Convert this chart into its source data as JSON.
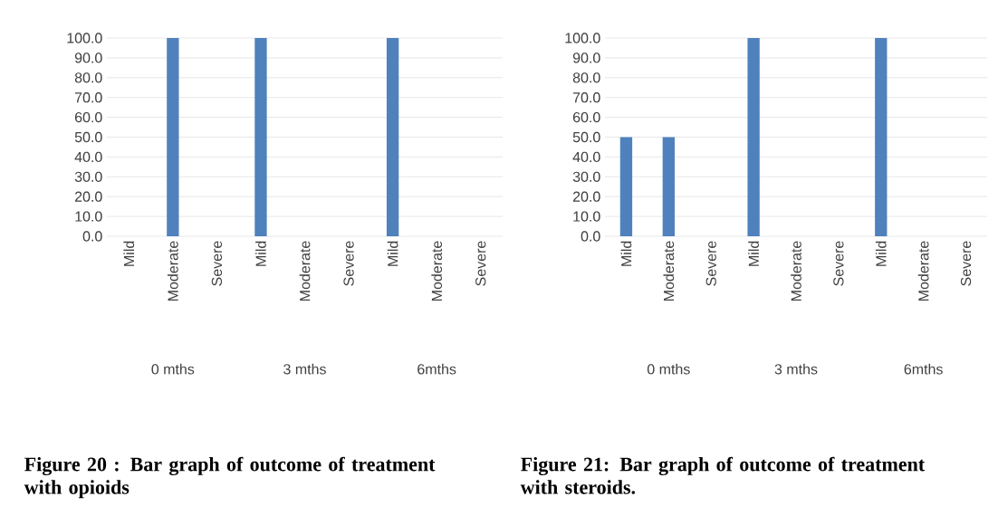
{
  "chart_data": [
    {
      "type": "bar",
      "title": "Figure 20 : Bar graph of outcome of treatment with opioids",
      "categories": [
        "Mild",
        "Moderate",
        "Severe",
        "Mild",
        "Moderate",
        "Severe",
        "Mild",
        "Moderate",
        "Severe"
      ],
      "values": [
        0,
        100,
        0,
        100,
        0,
        0,
        100,
        0,
        0
      ],
      "color": "#4f81bd",
      "ylim": [
        0,
        100
      ],
      "yticks": [
        {
          "value": 0,
          "label": "0.0"
        },
        {
          "value": 10,
          "label": "10.0"
        },
        {
          "value": 20,
          "label": "20.0"
        },
        {
          "value": 30,
          "label": "30.0"
        },
        {
          "value": 40,
          "label": "40.0"
        },
        {
          "value": 50,
          "label": "50.0"
        },
        {
          "value": 60,
          "label": "60.0"
        },
        {
          "value": 70,
          "label": "70.0"
        },
        {
          "value": 80,
          "label": "80.0"
        },
        {
          "value": 90,
          "label": "90.0"
        },
        {
          "value": 100,
          "label": "100.0"
        }
      ],
      "grid": "y",
      "annotations": [
        "0 mths",
        "3 mths",
        "6mths"
      ]
    },
    {
      "type": "bar",
      "title": "Figure 21: Bar graph of outcome of treatment with steroids.",
      "categories": [
        "Mild",
        "Moderate",
        "Severe",
        "Mild",
        "Moderate",
        "Severe",
        "Mild",
        "Moderate",
        "Severe"
      ],
      "values": [
        50,
        50,
        0,
        100,
        0,
        0,
        100,
        0,
        0
      ],
      "color": "#4f81bd",
      "ylim": [
        0,
        100
      ],
      "yticks": [
        {
          "value": 0,
          "label": "0.0"
        },
        {
          "value": 10,
          "label": "10.0"
        },
        {
          "value": 20,
          "label": "20.0"
        },
        {
          "value": 30,
          "label": "30.0"
        },
        {
          "value": 40,
          "label": "40.0"
        },
        {
          "value": 50,
          "label": "50.0"
        },
        {
          "value": 60,
          "label": "60.0"
        },
        {
          "value": 70,
          "label": "70.0"
        },
        {
          "value": 80,
          "label": "80.0"
        },
        {
          "value": 90,
          "label": "90.0"
        },
        {
          "value": 100,
          "label": "100.0"
        }
      ],
      "grid": "y",
      "annotations": [
        "0 mths",
        "3 mths",
        "6mths"
      ]
    }
  ]
}
